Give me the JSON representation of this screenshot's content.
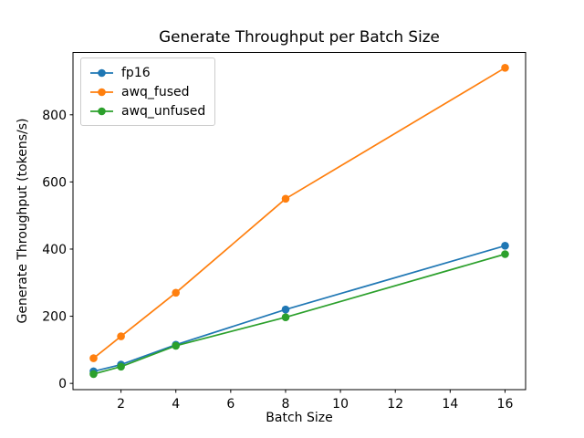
{
  "figure": {
    "title": "Generate Throughput per Batch Size",
    "xlabel": "Batch Size",
    "ylabel": "Generate Throughput (tokens/s)"
  },
  "chart_data": {
    "type": "line",
    "title": "Generate Throughput per Batch Size",
    "xlabel": "Batch Size",
    "ylabel": "Generate Throughput (tokens/s)",
    "x": [
      1,
      2,
      4,
      8,
      16
    ],
    "series": [
      {
        "name": "fp16",
        "color": "#1f77b4",
        "values": [
          36,
          56,
          115,
          220,
          410
        ]
      },
      {
        "name": "awq_fused",
        "color": "#ff7f0e",
        "values": [
          75,
          140,
          270,
          550,
          940
        ]
      },
      {
        "name": "awq_unfused",
        "color": "#2ca02c",
        "values": [
          28,
          50,
          112,
          197,
          385
        ]
      }
    ],
    "xticks": [
      2,
      4,
      6,
      8,
      10,
      12,
      14,
      16
    ],
    "yticks": [
      0,
      200,
      400,
      600,
      800
    ],
    "xlim": [
      0.25,
      16.75
    ],
    "ylim": [
      -18.6,
      985.6
    ],
    "legend_position": "upper left",
    "grid": false,
    "marker": "o",
    "axis_color": "#000000",
    "legend_border_color": "#cccccc"
  }
}
